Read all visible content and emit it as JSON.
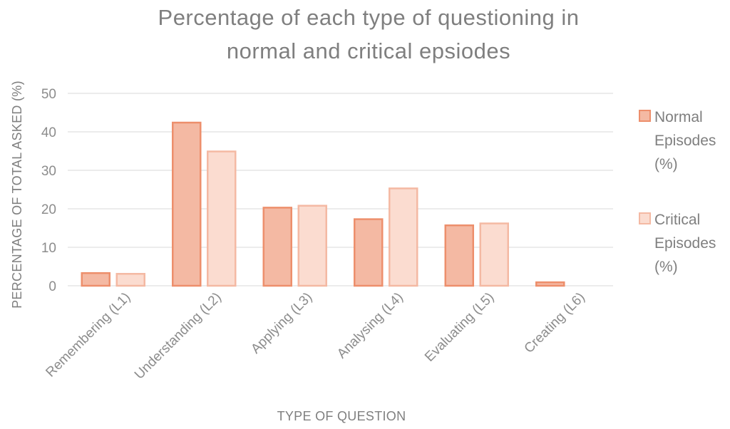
{
  "chart_data": {
    "type": "bar",
    "title": "Percentage of each type of questioning in normal and critical epsiodes",
    "title_lines": [
      "Percentage of each type of questioning in",
      "normal and critical epsiodes"
    ],
    "xlabel": "TYPE OF QUESTION",
    "ylabel": "PERCENTAGE OF TOTAL ASKED (%)",
    "ylim": [
      0,
      50
    ],
    "yticks": [
      0,
      10,
      20,
      30,
      40,
      50
    ],
    "grid": true,
    "legend_position": "right",
    "categories": [
      "Remembering (L1)",
      "Understanding (L2)",
      "Applying (L3)",
      "Analysing (L4)",
      "Evaluating (L5)",
      "Creating (L6)"
    ],
    "series": [
      {
        "name": "Normal Episodes (%)",
        "legend_lines": [
          "Normal",
          "Episodes",
          "(%)"
        ],
        "values": [
          3.3,
          42.4,
          20.3,
          17.3,
          15.7,
          0.9
        ],
        "fill": "#f4b9a3",
        "stroke": "#ed8f6c"
      },
      {
        "name": "Critical Episodes (%)",
        "legend_lines": [
          "Critical",
          "Episodes",
          "(%)"
        ],
        "values": [
          3.1,
          34.9,
          20.8,
          25.3,
          16.2,
          0
        ],
        "fill": "#fbdcd0",
        "stroke": "#f4b9a3"
      }
    ]
  }
}
